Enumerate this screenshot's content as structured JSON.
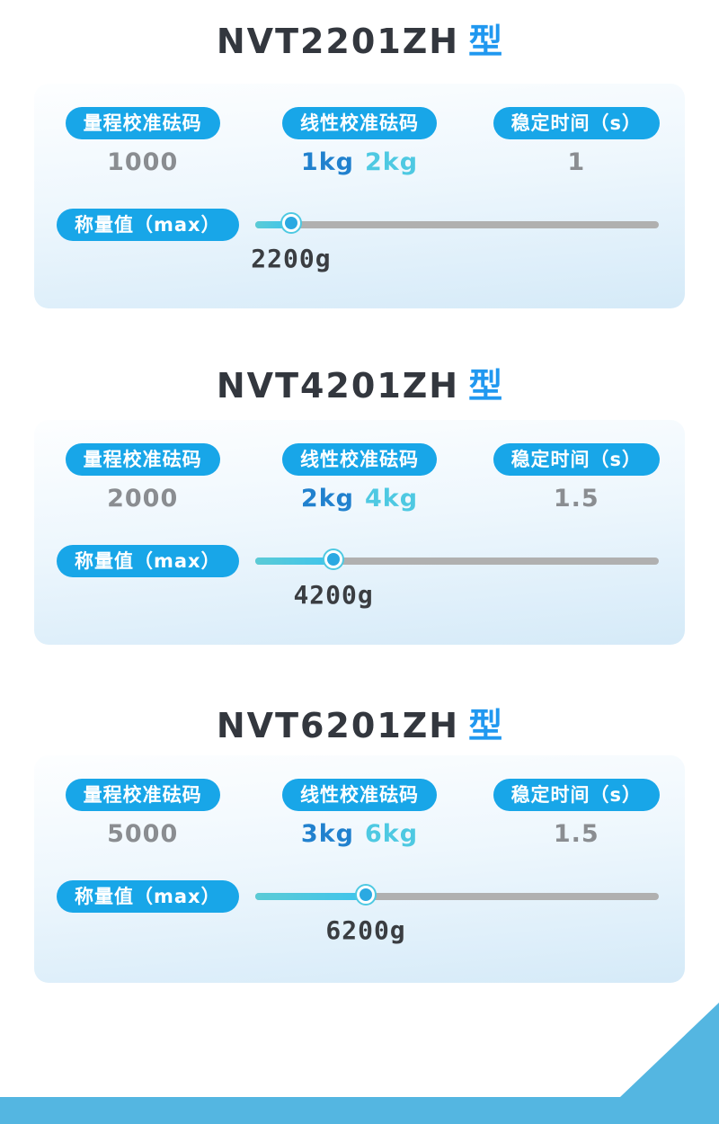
{
  "labels": {
    "range_weight": "量程校准砝码",
    "linearity_weight": "线性校准砝码",
    "stable_time": "稳定时间（s）",
    "max_weight": "称量值（max）"
  },
  "colors": {
    "title_dark": "#33373e",
    "title_accent": "#2098f0",
    "pill_blue": "#18a6e8",
    "value_gray": "#8a8d91",
    "kg_blue": "#2181ce",
    "kg_cyan": "#4ec9e2",
    "track_gray": "#b0b0b0",
    "slider_fill": "#3fc4ec",
    "handle_blue": "#2ba9e2",
    "ribbon_blue": "#54b6e1"
  },
  "sections": [
    {
      "model": "NVT2201ZH",
      "type_suffix": "型",
      "range_weight_value": "1000",
      "linear_weights": [
        "1kg",
        "2kg"
      ],
      "stable_time_value": "1",
      "slider": {
        "percent": 8.9,
        "value": "2200g"
      }
    },
    {
      "model": "NVT4201ZH",
      "type_suffix": "型",
      "range_weight_value": "2000",
      "linear_weights": [
        "2kg",
        "4kg"
      ],
      "stable_time_value": "1.5",
      "slider": {
        "percent": 19.4,
        "value": "4200g"
      }
    },
    {
      "model": "NVT6201ZH",
      "type_suffix": "型",
      "range_weight_value": "5000",
      "linear_weights": [
        "3kg",
        "6kg"
      ],
      "stable_time_value": "1.5",
      "slider": {
        "percent": 27.4,
        "value": "6200g"
      }
    }
  ]
}
